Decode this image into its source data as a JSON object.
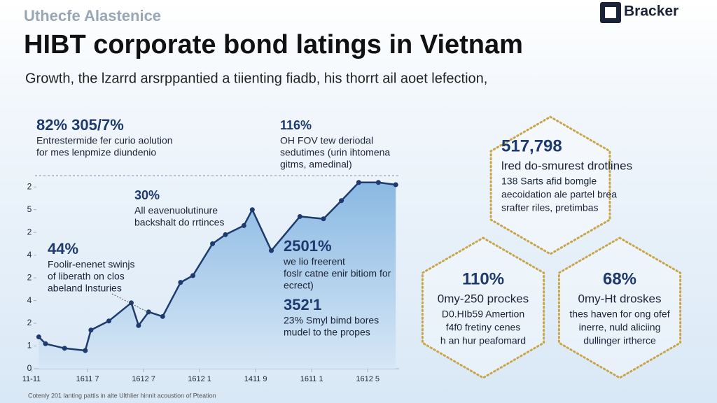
{
  "brand": "Uthecfe Alastenice",
  "logo": "Bracker",
  "chart_data": {
    "type": "area",
    "title": "HIBT corporate bond latings in Vietnam",
    "subtitle": "Growth, the lzarrd arsrppantied  a tiienting fiadb, his thorrt ail aoet lefection,",
    "x": [
      0.13,
      0.25,
      0.59,
      0.96,
      1.06,
      1.38,
      1.78,
      1.91,
      2.09,
      2.34,
      2.66,
      2.88,
      3.23,
      3.46,
      3.79,
      3.94,
      4.28,
      4.79,
      5.21,
      5.53,
      5.84,
      6.19,
      6.5
    ],
    "values": [
      1.4,
      1.1,
      0.9,
      0.8,
      1.7,
      2.1,
      2.9,
      1.9,
      2.5,
      2.3,
      3.8,
      4.1,
      5.5,
      5.9,
      6.3,
      7.0,
      5.2,
      6.7,
      6.6,
      7.4,
      8.2,
      8.2,
      8.1
    ],
    "color": "#1f3a6e",
    "xlim": [
      0,
      6.56
    ],
    "ylim": [
      0,
      8.5
    ],
    "xticks": [
      {
        "value": 0,
        "label": "11-11"
      },
      {
        "value": 1,
        "label": "1611 7"
      },
      {
        "value": 2,
        "label": "1612 7"
      },
      {
        "value": 3,
        "label": "1612 1"
      },
      {
        "value": 4,
        "label": "1411 9"
      },
      {
        "value": 5,
        "label": "1611 1"
      },
      {
        "value": 6,
        "label": "1612 5"
      }
    ],
    "yticks": [
      0,
      1,
      2,
      {
        "value": 3,
        "label": "4"
      },
      {
        "value": 4,
        "label": "2"
      },
      {
        "value": 5,
        "label": "4"
      },
      {
        "value": 6,
        "label": "2"
      },
      {
        "value": 7,
        "label": "5"
      },
      {
        "value": 8,
        "label": "2"
      }
    ],
    "annotations": [
      {
        "value": "82% 305/7%",
        "lines": [
          "Entrestermide fer curio aolution",
          "for mes lenpmize diundenio"
        ]
      },
      {
        "value": "116%",
        "lines": [
          "OH FOV tew deriodal",
          "sedutimes (urin ihtomena",
          "gitms, amedinal)"
        ]
      },
      {
        "value": "30%",
        "lines": [
          "All eavenuolutinure",
          "backshalt do rrtinces"
        ]
      },
      {
        "value": "44%",
        "lines": [
          "Foolir-enenet swinjs",
          "of liberath on clos",
          "abeland lnsturies"
        ]
      },
      {
        "value": "2501%",
        "lines": [
          "we lio freerent",
          "foslr catne enir bitiom for",
          "ecrect)"
        ]
      },
      {
        "value": "352'1",
        "lines": [
          "23% Smyl bimd bores",
          "mudel to the propes"
        ]
      }
    ]
  },
  "cards": [
    {
      "value": "517,798",
      "heading": "lred do-smurest drotlines",
      "lines": [
        "138 Sarts afid bomgle",
        "aecoidation ale partel brea",
        "srafter riles, pretimbas"
      ]
    },
    {
      "value": "110%",
      "heading": "0my-250 prockes",
      "lines": [
        "D0.HIb59 Amertion",
        "f4f0 fretiny cenes",
        "h an hur peafomard"
      ]
    },
    {
      "value": "68%",
      "heading": "0my-Ht droskes",
      "lines": [
        "thes haven for ong ofef",
        "inerre, nuld aliciing",
        "dullinger irtherce"
      ]
    }
  ],
  "footer": "Cotenly 201 lanting pattis in alte Ulthlier hinnit acoustion of Pteation"
}
